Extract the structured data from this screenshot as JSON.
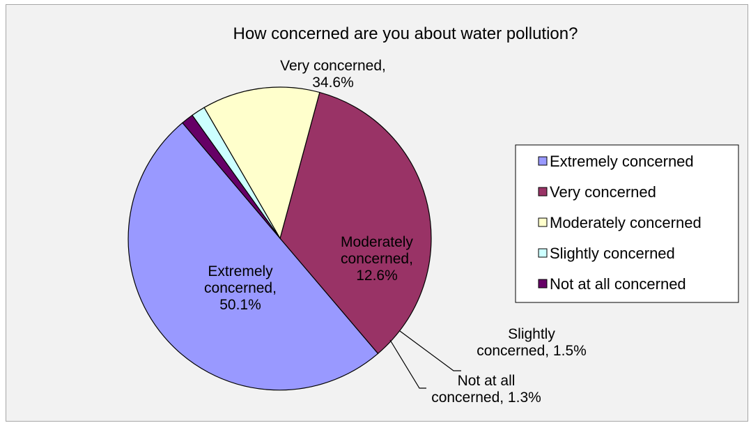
{
  "chart_data": {
    "type": "pie",
    "title": "How concerned are you about water pollution?",
    "slices": [
      {
        "name": "Extremely concerned",
        "value": 50.1,
        "value_label": "50.1%",
        "label_lines": [
          "Extremely",
          "concerned,",
          "50.1%"
        ],
        "color": "#9999ff"
      },
      {
        "name": "Very concerned",
        "value": 34.6,
        "value_label": "34.6%",
        "label_lines": [
          "Very concerned,",
          "34.6%"
        ],
        "color": "#993366"
      },
      {
        "name": "Moderately concerned",
        "value": 12.6,
        "value_label": "12.6%",
        "label_lines": [
          "Moderately",
          "concerned,",
          "12.6%"
        ],
        "color": "#ffffcc"
      },
      {
        "name": "Slightly concerned",
        "value": 1.5,
        "value_label": "1.5%",
        "label_lines": [
          "Slightly",
          "concerned, 1.5%"
        ],
        "color": "#ccffff"
      },
      {
        "name": "Not at all concerned",
        "value": 1.3,
        "value_label": "1.3%",
        "label_lines": [
          "Not at all",
          "concerned, 1.3%"
        ],
        "color": "#660066"
      }
    ],
    "legend_position": "right",
    "slice_border_color": "#000000",
    "background_color": "#f2f2f2"
  }
}
